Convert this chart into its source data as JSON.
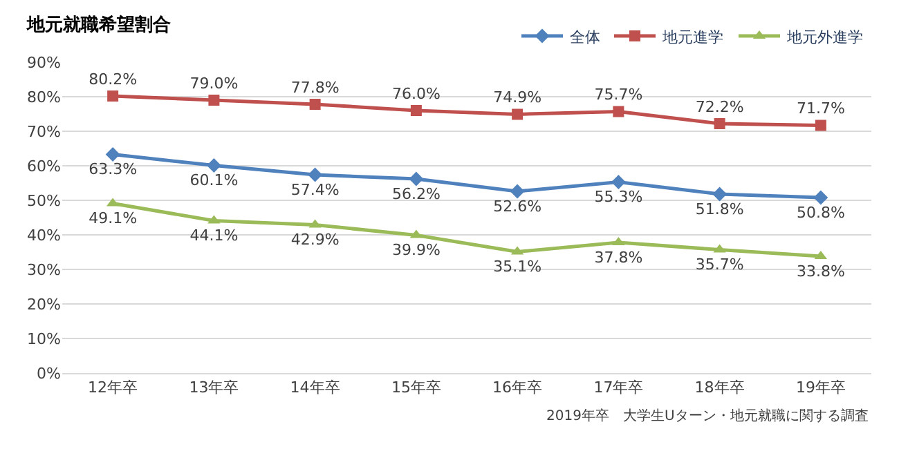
{
  "chart_data": {
    "type": "line",
    "title": "地元就職希望割合",
    "categories": [
      "12年卒",
      "13年卒",
      "14年卒",
      "15年卒",
      "16年卒",
      "17年卒",
      "18年卒",
      "19年卒"
    ],
    "series": [
      {
        "name": "全体",
        "color": "#4f81bd",
        "marker": "diamond",
        "values": [
          63.3,
          60.1,
          57.4,
          56.2,
          52.6,
          55.3,
          51.8,
          50.8
        ],
        "value_labels": [
          "63.3%",
          "60.1%",
          "57.4%",
          "56.2%",
          "52.6%",
          "55.3%",
          "51.8%",
          "50.8%"
        ]
      },
      {
        "name": "地元進学",
        "color": "#c0504d",
        "marker": "square",
        "values": [
          80.2,
          79.0,
          77.8,
          76.0,
          74.9,
          75.7,
          72.2,
          71.7
        ],
        "value_labels": [
          "80.2%",
          "79.0%",
          "77.8%",
          "76.0%",
          "74.9%",
          "75.7%",
          "72.2%",
          "71.7%"
        ]
      },
      {
        "name": "地元外進学",
        "color": "#9bbb59",
        "marker": "triangle",
        "values": [
          49.1,
          44.1,
          42.9,
          39.9,
          35.1,
          37.8,
          35.7,
          33.8
        ],
        "value_labels": [
          "49.1%",
          "44.1%",
          "42.9%",
          "39.9%",
          "35.1%",
          "37.8%",
          "35.7%",
          "33.8%"
        ]
      }
    ],
    "ylim": [
      0,
      90
    ],
    "yticks": [
      {
        "value": 0,
        "label": "0%"
      },
      {
        "value": 10,
        "label": "10%"
      },
      {
        "value": 20,
        "label": "20%"
      },
      {
        "value": 30,
        "label": "30%"
      },
      {
        "value": 40,
        "label": "40%"
      },
      {
        "value": 50,
        "label": "50%"
      },
      {
        "value": 60,
        "label": "60%"
      },
      {
        "value": 70,
        "label": "70%"
      },
      {
        "value": 80,
        "label": "80%"
      },
      {
        "value": 90,
        "label": "90%"
      }
    ],
    "grid": "y",
    "legend": "top right",
    "line_style": "solid",
    "annotations": [
      "2019年卒　大学生Uターン・地元就職に関する調査"
    ]
  }
}
